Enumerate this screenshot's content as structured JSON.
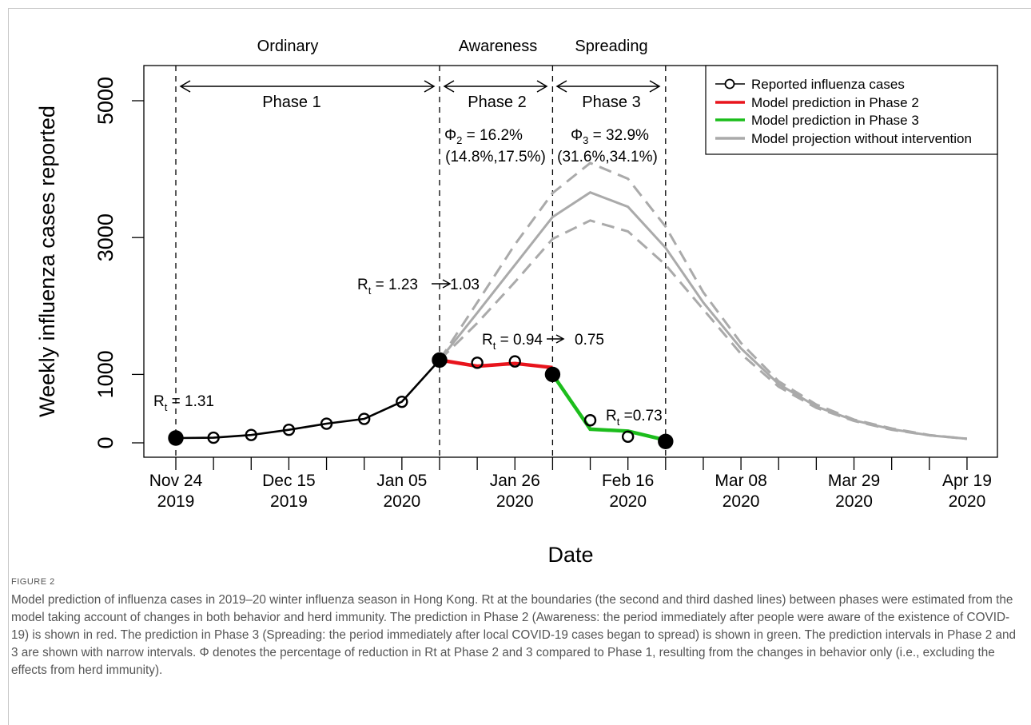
{
  "chart_data": {
    "type": "line",
    "ylabel": "Weekly influenza cases reported",
    "xlabel": "Date",
    "ylim": [
      0,
      5400
    ],
    "yticks": [
      0,
      1000,
      3000,
      5000
    ],
    "xlim_week": [
      0,
      21
    ],
    "x_dates": [
      "Nov 24 2019",
      "Dec 01 2019",
      "Dec 08 2019",
      "Dec 15 2019",
      "Dec 22 2019",
      "Dec 29 2019",
      "Jan 05 2020",
      "Jan 12 2020",
      "Jan 19 2020",
      "Jan 26 2020",
      "Feb 02 2020",
      "Feb 09 2020",
      "Feb 16 2020",
      "Feb 23 2020",
      "Mar 01 2020",
      "Mar 08 2020",
      "Mar 15 2020",
      "Mar 22 2020",
      "Mar 29 2020",
      "Apr 05 2020",
      "Apr 12 2020",
      "Apr 19 2020"
    ],
    "xtick_labels": [
      {
        "week": 0,
        "line1": "Nov 24",
        "line2": "2019"
      },
      {
        "week": 3,
        "line1": "Dec 15",
        "line2": "2019"
      },
      {
        "week": 6,
        "line1": "Jan 05",
        "line2": "2020"
      },
      {
        "week": 9,
        "line1": "Jan 26",
        "line2": "2020"
      },
      {
        "week": 12,
        "line1": "Feb 16",
        "line2": "2020"
      },
      {
        "week": 15,
        "line1": "Mar 08",
        "line2": "2020"
      },
      {
        "week": 18,
        "line1": "Mar 29",
        "line2": "2020"
      },
      {
        "week": 21,
        "line1": "Apr 19",
        "line2": "2020"
      }
    ],
    "phase_boundaries_week": [
      0,
      7,
      10,
      13
    ],
    "phases": [
      {
        "name": "Ordinary",
        "label": "Phase 1",
        "from": 0,
        "to": 7
      },
      {
        "name": "Awareness",
        "label": "Phase 2",
        "from": 7,
        "to": 10
      },
      {
        "name": "Spreading",
        "label": "Phase 3",
        "from": 10,
        "to": 13
      }
    ],
    "series": [
      {
        "name": "Reported influenza cases",
        "color": "#000000",
        "style": "line+open-circles",
        "x": [
          0,
          1,
          2,
          3,
          4,
          5,
          6,
          7,
          8,
          9,
          10,
          11,
          12,
          13
        ],
        "values": [
          70,
          75,
          115,
          190,
          280,
          350,
          600,
          1210,
          1170,
          1190,
          1000,
          330,
          90,
          20
        ],
        "filled_points": [
          0,
          7,
          10,
          13
        ]
      },
      {
        "name": "Model prediction in Phase 2",
        "color": "#e8141c",
        "x": [
          7,
          8,
          9,
          10
        ],
        "values": [
          1210,
          1120,
          1160,
          1100
        ]
      },
      {
        "name": "Model prediction in Phase 3",
        "color": "#1cbd1c",
        "x": [
          10,
          11,
          12,
          13
        ],
        "values": [
          1000,
          200,
          170,
          40
        ]
      },
      {
        "name": "Model projection without intervention",
        "color": "#aaaaaa",
        "x": [
          7,
          8,
          9,
          10,
          11,
          12,
          13,
          14,
          15,
          16,
          17,
          18,
          19,
          20,
          21
        ],
        "values": [
          1210,
          1900,
          2600,
          3300,
          3660,
          3450,
          2850,
          2050,
          1380,
          860,
          530,
          330,
          200,
          110,
          60
        ],
        "lower": [
          1210,
          1750,
          2350,
          2980,
          3250,
          3090,
          2600,
          1950,
          1300,
          820,
          510,
          320,
          190,
          110,
          60
        ],
        "upper": [
          1210,
          2050,
          2900,
          3650,
          4090,
          3860,
          3160,
          2200,
          1460,
          900,
          560,
          340,
          210,
          115,
          60
        ]
      }
    ],
    "annotations": {
      "rt1": {
        "prefix": "R",
        "sub": "t",
        "text": " = 1.31"
      },
      "rt2": {
        "prefix": "R",
        "sub": "t",
        "text": " =  1.23",
        "arrow_to": "1.03"
      },
      "rt3": {
        "prefix": "R",
        "sub": "t",
        "text": " = 0.94",
        "arrow_to": "0.75"
      },
      "rt4": {
        "prefix": "R",
        "sub": "t",
        "text": " =0.73"
      },
      "phi2": {
        "symbol": "Φ",
        "sub": "2",
        "value": " = 16.2%",
        "ci": "(14.8%,17.5%)"
      },
      "phi3": {
        "symbol": "Φ",
        "sub": "3",
        "value": " = 32.9%",
        "ci": "(31.6%,34.1%)"
      }
    },
    "legend_position": "top-right"
  },
  "caption": {
    "figure_label": "FIGURE 2",
    "text": "Model prediction of influenza cases in 2019–20 winter influenza season in Hong Kong. Rt at the boundaries (the second and third dashed lines) between phases were estimated from the model taking account of changes in both behavior and herd immunity. The prediction in Phase 2 (Awareness: the period immediately after people were aware of the existence of COVID-19) is shown in red. The prediction in Phase 3 (Spreading: the period immediately after local COVID-19 cases began to spread) is shown in green. The prediction intervals in Phase 2 and 3 are shown with narrow intervals. Φ denotes the percentage of reduction in Rt at Phase 2 and 3 compared to Phase 1, resulting from the changes in behavior only (i.e., excluding the effects from herd immunity)."
  }
}
